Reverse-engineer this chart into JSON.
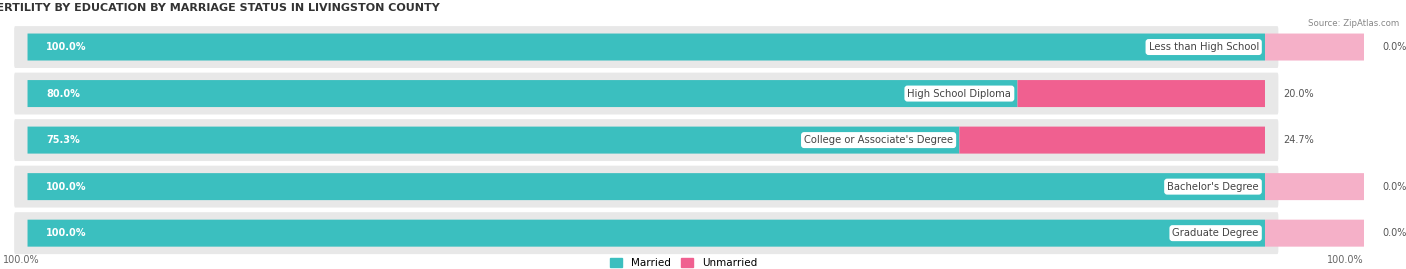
{
  "title": "FERTILITY BY EDUCATION BY MARRIAGE STATUS IN LIVINGSTON COUNTY",
  "source": "Source: ZipAtlas.com",
  "categories": [
    "Less than High School",
    "High School Diploma",
    "College or Associate's Degree",
    "Bachelor's Degree",
    "Graduate Degree"
  ],
  "married_pct": [
    100.0,
    80.0,
    75.3,
    100.0,
    100.0
  ],
  "unmarried_pct": [
    0.0,
    20.0,
    24.7,
    0.0,
    0.0
  ],
  "married_color": "#3bbfbf",
  "unmarried_color_dark": "#f06090",
  "unmarried_color_light": "#f5b0c8",
  "row_bg_color": "#e8e8e8",
  "label_text_color": "#444444",
  "pct_left_color": "#ffffff",
  "pct_right_color": "#555555",
  "axis_label_left": "100.0%",
  "axis_label_right": "100.0%",
  "figsize": [
    14.06,
    2.69
  ],
  "dpi": 100
}
